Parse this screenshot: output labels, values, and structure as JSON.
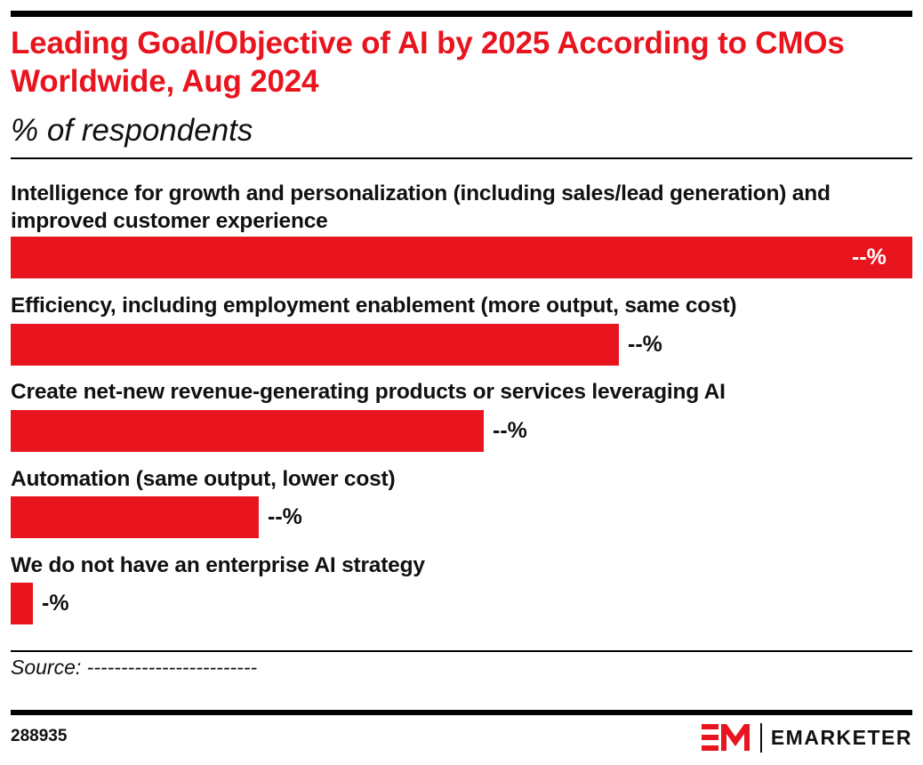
{
  "header": {
    "title": "Leading Goal/Objective of AI by 2025 According to CMOs Worldwide, Aug 2024",
    "subtitle": "% of respondents"
  },
  "chart_data": {
    "type": "bar",
    "orientation": "horizontal",
    "title": "Leading Goal/Objective of AI by 2025 According to CMOs Worldwide, Aug 2024",
    "subtitle": "% of respondents",
    "categories": [
      "Intelligence for growth and personalization (including sales/lead generation) and improved customer experience",
      "Efficiency, including employment enablement (more output, same cost)",
      "Create net-new revenue-generating products or services leveraging AI",
      "Automation (same output, lower cost)",
      "We do not have an enterprise AI strategy"
    ],
    "values": [
      100,
      67.5,
      52.5,
      27.5,
      2.5
    ],
    "value_labels": [
      "--%",
      "--%",
      "--%",
      "--%",
      "-%"
    ],
    "xlim": [
      0,
      100
    ],
    "grid": false,
    "legend": "none",
    "bar_color": "#e8141e"
  },
  "footer": {
    "source": "Source: -------------------------",
    "chart_id": "288935",
    "brand": "EMARKETER"
  },
  "icons": {
    "logo": "emarketer-logo-icon"
  },
  "colors": {
    "accent": "#e8141e",
    "text": "#111111",
    "rule": "#000000"
  }
}
